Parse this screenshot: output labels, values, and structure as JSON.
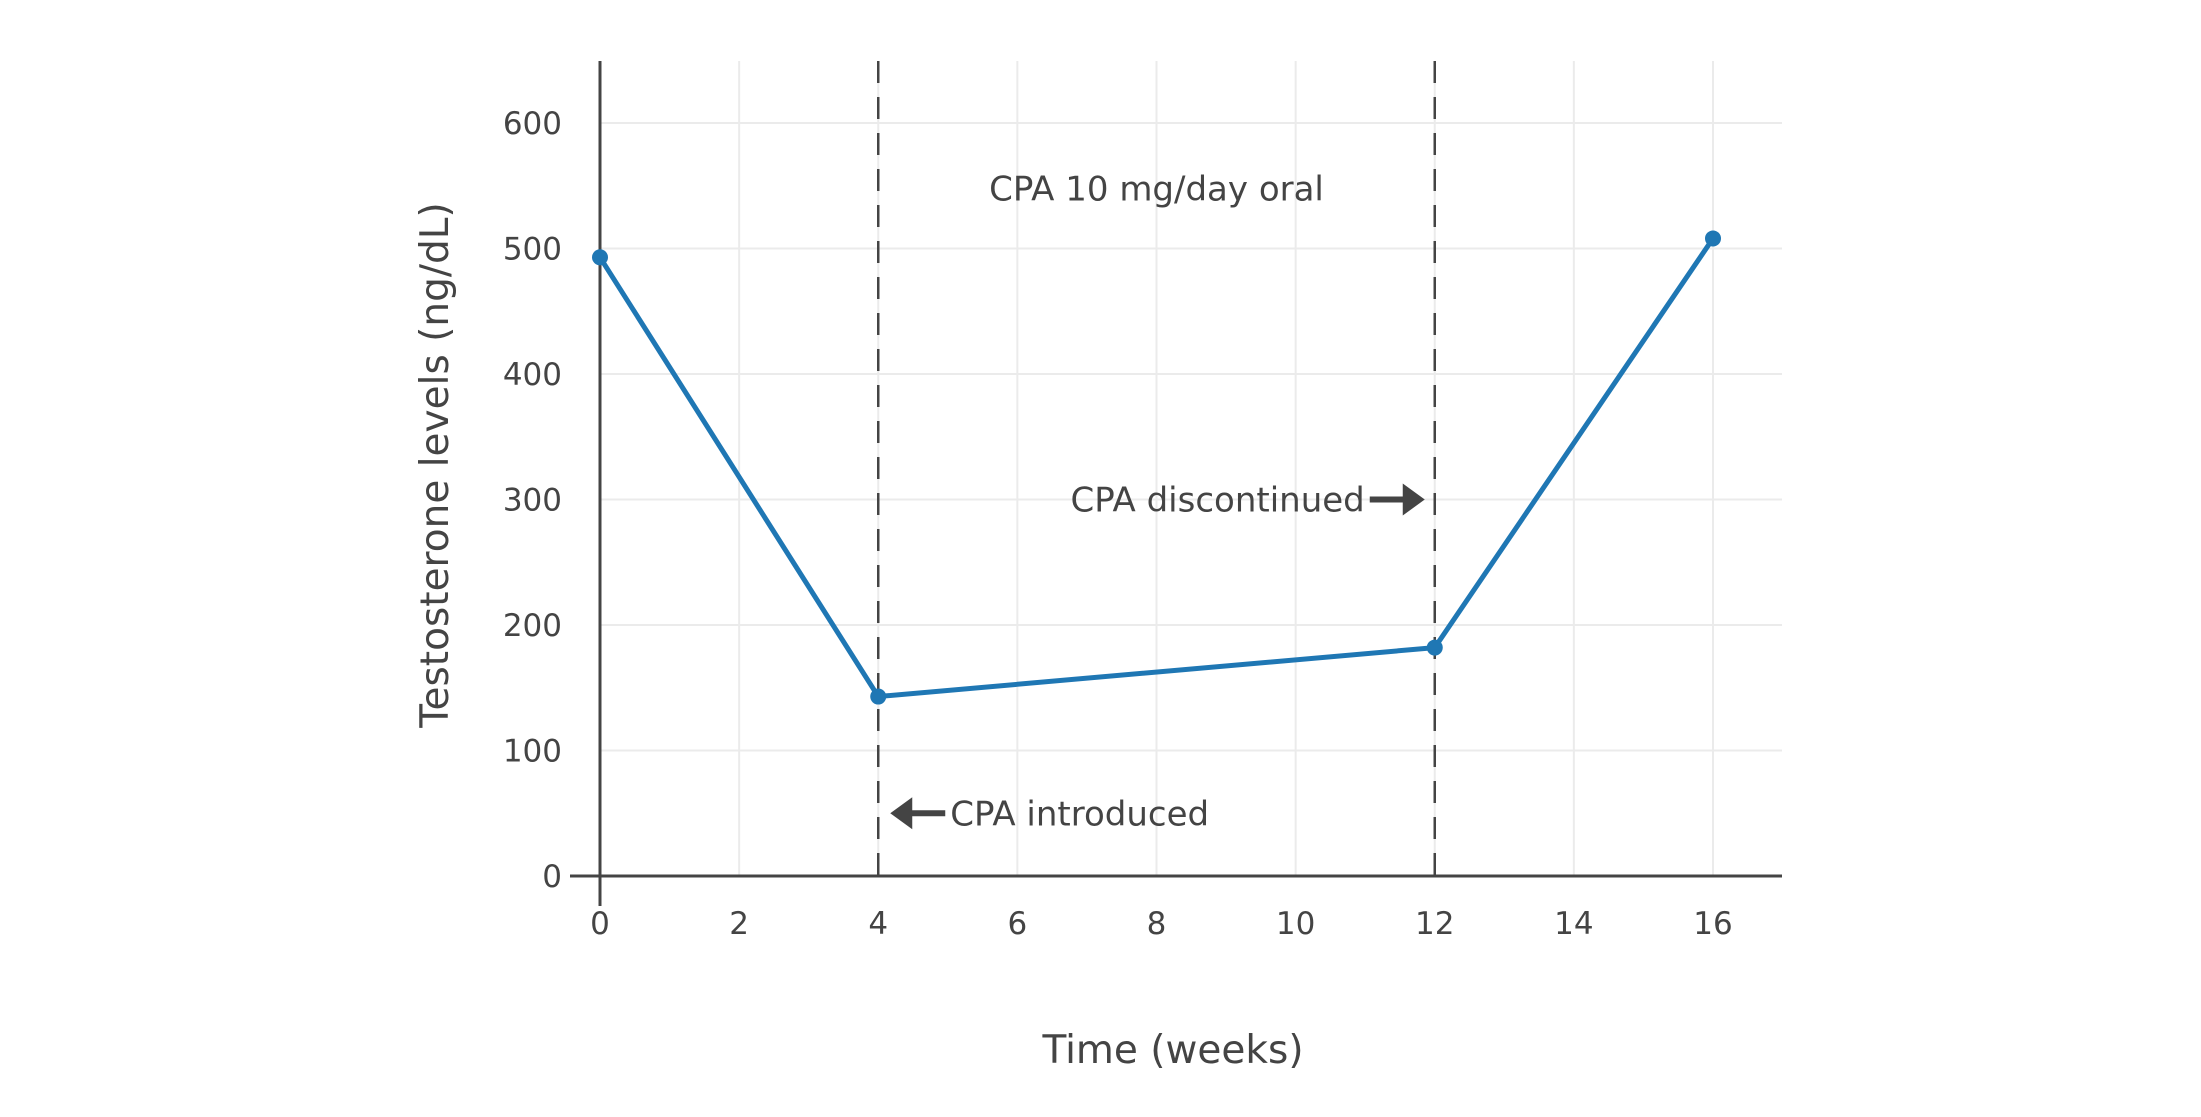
{
  "chart_data": {
    "type": "line",
    "title": "",
    "xlabel": "Time (weeks)",
    "ylabel": "Testosterone levels (ng/dL)",
    "xlim": [
      0,
      17
    ],
    "ylim": [
      0,
      650
    ],
    "xticks": [
      0,
      2,
      4,
      6,
      8,
      10,
      12,
      14,
      16
    ],
    "yticks": [
      0,
      100,
      200,
      300,
      400,
      500,
      600
    ],
    "grid": true,
    "legend": "none",
    "series": [
      {
        "x": [
          0,
          4,
          12,
          16
        ],
        "y": [
          493,
          143,
          182,
          508
        ],
        "color": "#1f77b4",
        "markers": true
      }
    ],
    "vlines": [
      {
        "x": 4,
        "style": "dashed",
        "color": "#444444"
      },
      {
        "x": 12,
        "style": "dashed",
        "color": "#444444"
      }
    ],
    "annotations": [
      {
        "text": "CPA 10 mg/day oral",
        "x": 8,
        "y": 548
      },
      {
        "text": "CPA discontinued",
        "x": 12,
        "y": 300,
        "arrow": "right"
      },
      {
        "text": "CPA introduced",
        "x": 4,
        "y": 50,
        "arrow": "left"
      }
    ]
  }
}
